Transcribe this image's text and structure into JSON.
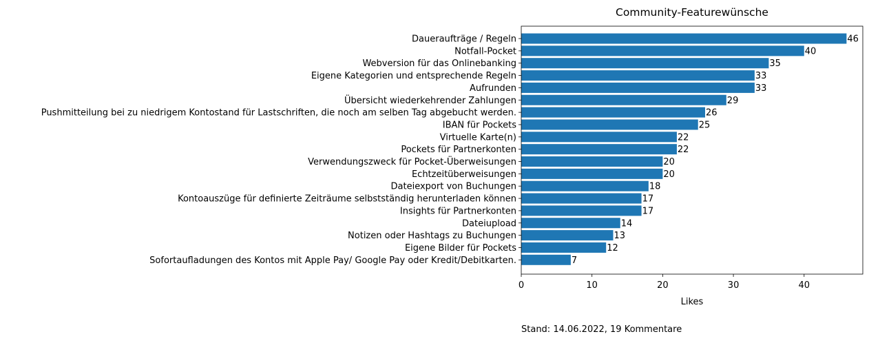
{
  "chart_data": {
    "type": "bar",
    "orientation": "horizontal",
    "title": "Community-Featurewünsche",
    "xlabel": "Likes",
    "ylabel": "",
    "xlim": [
      0,
      48.3
    ],
    "xticks": [
      0,
      10,
      20,
      30,
      40
    ],
    "bar_color": "#1f77b4",
    "grid": false,
    "legend": "none",
    "categories": [
      "Daueraufträge / Regeln",
      "Notfall-Pocket",
      "Webversion für das Onlinebanking",
      "Eigene Kategorien und entsprechende Regeln",
      "Aufrunden",
      "Übersicht wiederkehrender Zahlungen",
      "Pushmitteilung bei zu niedrigem Kontostand für Lastschriften, die noch am selben Tag abgebucht werden.",
      "IBAN für Pockets",
      "Virtuelle Karte(n)",
      "Pockets für Partnerkonten",
      "Verwendungszweck für Pocket-Überweisungen",
      "Echtzeitüberweisungen",
      "Dateiexport von Buchungen",
      "Kontoauszüge für definierte Zeiträume selbstständig herunterladen können",
      "Insights für Partnerkonten",
      "Dateiupload",
      "Notizen oder Hashtags zu Buchungen",
      "Eigene Bilder für Pockets",
      "Sofortaufladungen des Kontos mit Apple Pay/ Google Pay oder Kredit/Debitkarten."
    ],
    "values": [
      46,
      40,
      35,
      33,
      33,
      29,
      26,
      25,
      22,
      22,
      20,
      20,
      18,
      17,
      17,
      14,
      13,
      12,
      7
    ]
  },
  "footnote": "Stand: 14.06.2022, 19 Kommentare"
}
